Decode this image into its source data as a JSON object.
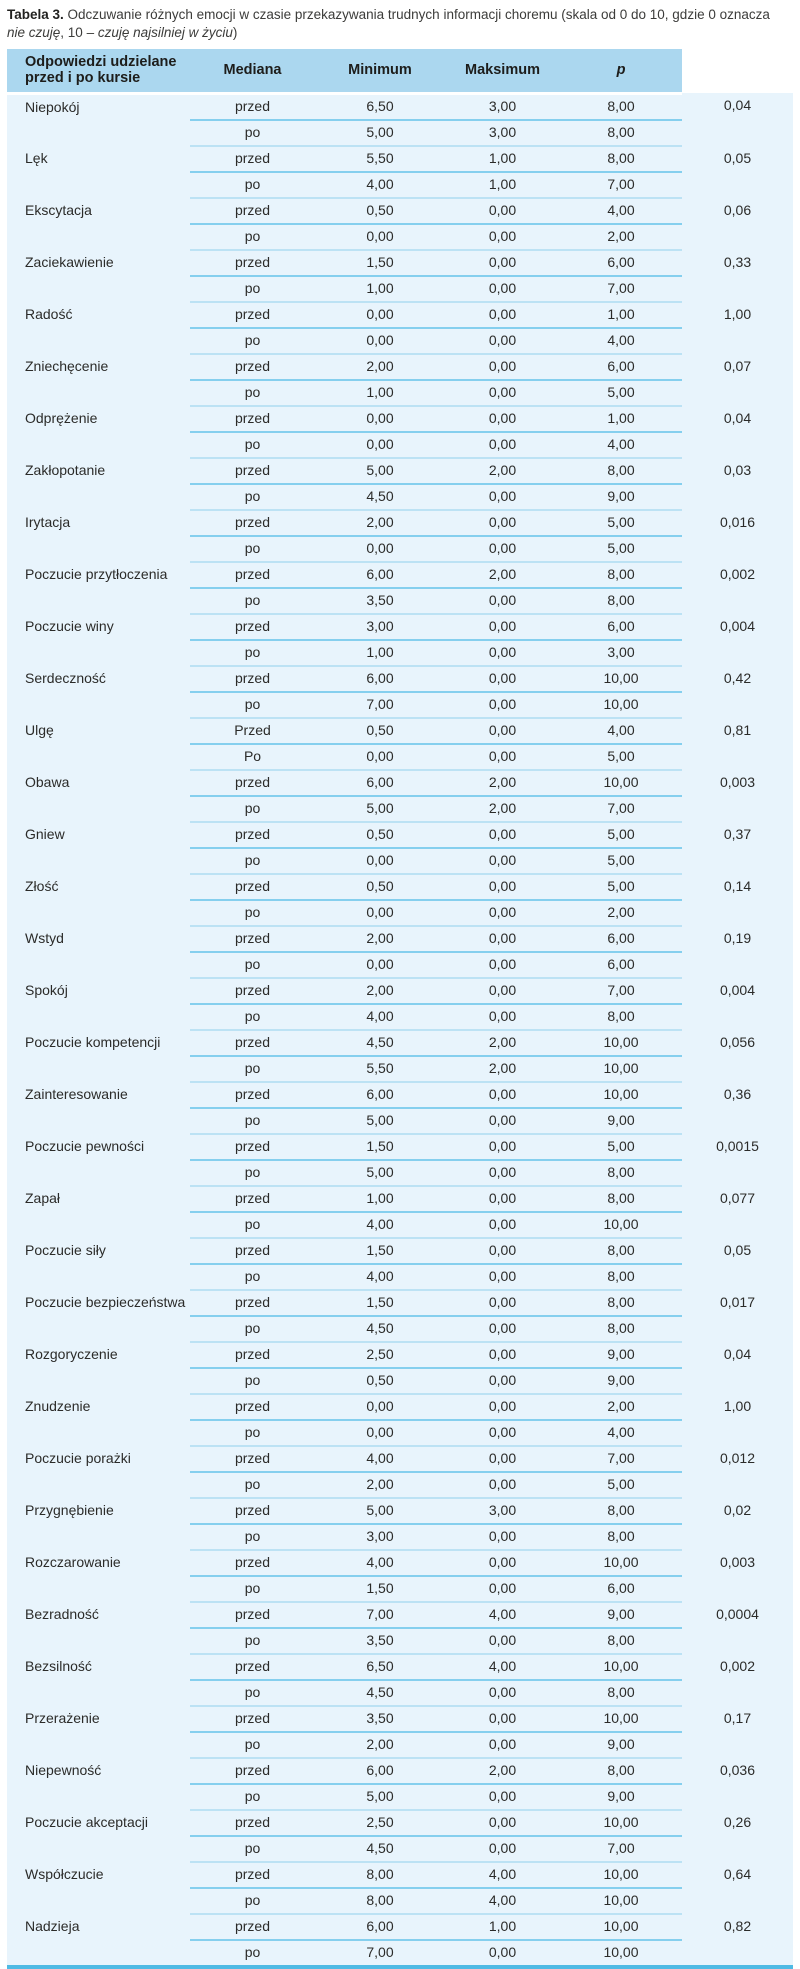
{
  "colors": {
    "header_bg": "#abd7ef",
    "row_bg": "#e8f4fc",
    "inner_rule": "#85cfee",
    "block_rule": "#bce2f4",
    "bottom_border": "#4fbae4"
  },
  "caption": {
    "bold_label": "Tabela 3.",
    "segments": [
      {
        "text": " Odczuwanie różnych emocji w czasie przekazywania trudnych informacji choremu (skala od 0 do 10, gdzie 0 oznacza ",
        "italic": false
      },
      {
        "text": "nie czuję",
        "italic": true
      },
      {
        "text": ", 10 – ",
        "italic": false
      },
      {
        "text": "czuję najsilniej w życiu",
        "italic": true
      },
      {
        "text": ")",
        "italic": false
      }
    ]
  },
  "table": {
    "headers": {
      "answers": "Odpowiedzi udzielane przed i po kursie",
      "median": "Mediana",
      "min": "Minimum",
      "max": "Maksimum",
      "p": "p"
    },
    "rows": [
      {
        "emotion": "Niepokój",
        "before_label": "przed",
        "after_label": "po",
        "before": {
          "median": "6,50",
          "min": "3,00",
          "max": "8,00"
        },
        "after": {
          "median": "5,00",
          "min": "3,00",
          "max": "8,00"
        },
        "p": "0,04"
      },
      {
        "emotion": "Lęk",
        "before_label": "przed",
        "after_label": "po",
        "before": {
          "median": "5,50",
          "min": "1,00",
          "max": "8,00"
        },
        "after": {
          "median": "4,00",
          "min": "1,00",
          "max": "7,00"
        },
        "p": "0,05"
      },
      {
        "emotion": "Ekscytacja",
        "before_label": "przed",
        "after_label": "po",
        "before": {
          "median": "0,50",
          "min": "0,00",
          "max": "4,00"
        },
        "after": {
          "median": "0,00",
          "min": "0,00",
          "max": "2,00"
        },
        "p": "0,06"
      },
      {
        "emotion": "Zaciekawienie",
        "before_label": "przed",
        "after_label": "po",
        "before": {
          "median": "1,50",
          "min": "0,00",
          "max": "6,00"
        },
        "after": {
          "median": "1,00",
          "min": "0,00",
          "max": "7,00"
        },
        "p": "0,33"
      },
      {
        "emotion": "Radość",
        "before_label": "przed",
        "after_label": "po",
        "before": {
          "median": "0,00",
          "min": "0,00",
          "max": "1,00"
        },
        "after": {
          "median": "0,00",
          "min": "0,00",
          "max": "4,00"
        },
        "p": "1,00"
      },
      {
        "emotion": "Zniechęcenie",
        "before_label": "przed",
        "after_label": "po",
        "before": {
          "median": "2,00",
          "min": "0,00",
          "max": "6,00"
        },
        "after": {
          "median": "1,00",
          "min": "0,00",
          "max": "5,00"
        },
        "p": "0,07"
      },
      {
        "emotion": "Odprężenie",
        "before_label": "przed",
        "after_label": "po",
        "before": {
          "median": "0,00",
          "min": "0,00",
          "max": "1,00"
        },
        "after": {
          "median": "0,00",
          "min": "0,00",
          "max": "4,00"
        },
        "p": "0,04"
      },
      {
        "emotion": "Zakłopotanie",
        "before_label": "przed",
        "after_label": "po",
        "before": {
          "median": "5,00",
          "min": "2,00",
          "max": "8,00"
        },
        "after": {
          "median": "4,50",
          "min": "0,00",
          "max": "9,00"
        },
        "p": "0,03"
      },
      {
        "emotion": "Irytacja",
        "before_label": "przed",
        "after_label": "po",
        "before": {
          "median": "2,00",
          "min": "0,00",
          "max": "5,00"
        },
        "after": {
          "median": "0,00",
          "min": "0,00",
          "max": "5,00"
        },
        "p": "0,016"
      },
      {
        "emotion": "Poczucie przytłoczenia",
        "before_label": "przed",
        "after_label": "po",
        "before": {
          "median": "6,00",
          "min": "2,00",
          "max": "8,00"
        },
        "after": {
          "median": "3,50",
          "min": "0,00",
          "max": "8,00"
        },
        "p": "0,002"
      },
      {
        "emotion": "Poczucie winy",
        "before_label": "przed",
        "after_label": "po",
        "before": {
          "median": "3,00",
          "min": "0,00",
          "max": "6,00"
        },
        "after": {
          "median": "1,00",
          "min": "0,00",
          "max": "3,00"
        },
        "p": "0,004"
      },
      {
        "emotion": "Serdeczność",
        "before_label": "przed",
        "after_label": "po",
        "before": {
          "median": "6,00",
          "min": "0,00",
          "max": "10,00"
        },
        "after": {
          "median": "7,00",
          "min": "0,00",
          "max": "10,00"
        },
        "p": "0,42"
      },
      {
        "emotion": "Ulgę",
        "before_label": "Przed",
        "after_label": "Po",
        "before": {
          "median": "0,50",
          "min": "0,00",
          "max": "4,00"
        },
        "after": {
          "median": "0,00",
          "min": "0,00",
          "max": "5,00"
        },
        "p": "0,81"
      },
      {
        "emotion": "Obawa",
        "before_label": "przed",
        "after_label": "po",
        "before": {
          "median": "6,00",
          "min": "2,00",
          "max": "10,00"
        },
        "after": {
          "median": "5,00",
          "min": "2,00",
          "max": "7,00"
        },
        "p": "0,003"
      },
      {
        "emotion": "Gniew",
        "before_label": "przed",
        "after_label": "po",
        "before": {
          "median": "0,50",
          "min": "0,00",
          "max": "5,00"
        },
        "after": {
          "median": "0,00",
          "min": "0,00",
          "max": "5,00"
        },
        "p": "0,37"
      },
      {
        "emotion": "Złość",
        "before_label": "przed",
        "after_label": "po",
        "before": {
          "median": "0,50",
          "min": "0,00",
          "max": "5,00"
        },
        "after": {
          "median": "0,00",
          "min": "0,00",
          "max": "2,00"
        },
        "p": "0,14"
      },
      {
        "emotion": "Wstyd",
        "before_label": "przed",
        "after_label": "po",
        "before": {
          "median": "2,00",
          "min": "0,00",
          "max": "6,00"
        },
        "after": {
          "median": "0,00",
          "min": "0,00",
          "max": "6,00"
        },
        "p": "0,19"
      },
      {
        "emotion": "Spokój",
        "before_label": "przed",
        "after_label": "po",
        "before": {
          "median": "2,00",
          "min": "0,00",
          "max": "7,00"
        },
        "after": {
          "median": "4,00",
          "min": "0,00",
          "max": "8,00"
        },
        "p": "0,004"
      },
      {
        "emotion": "Poczucie kompetencji",
        "before_label": "przed",
        "after_label": "po",
        "before": {
          "median": "4,50",
          "min": "2,00",
          "max": "10,00"
        },
        "after": {
          "median": "5,50",
          "min": "2,00",
          "max": "10,00"
        },
        "p": "0,056"
      },
      {
        "emotion": "Zainteresowanie",
        "before_label": "przed",
        "after_label": "po",
        "before": {
          "median": "6,00",
          "min": "0,00",
          "max": "10,00"
        },
        "after": {
          "median": "5,00",
          "min": "0,00",
          "max": "9,00"
        },
        "p": "0,36"
      },
      {
        "emotion": "Poczucie pewności",
        "before_label": "przed",
        "after_label": "po",
        "before": {
          "median": "1,50",
          "min": "0,00",
          "max": "5,00"
        },
        "after": {
          "median": "5,00",
          "min": "0,00",
          "max": "8,00"
        },
        "p": "0,0015"
      },
      {
        "emotion": "Zapał",
        "before_label": "przed",
        "after_label": "po",
        "before": {
          "median": "1,00",
          "min": "0,00",
          "max": "8,00"
        },
        "after": {
          "median": "4,00",
          "min": "0,00",
          "max": "10,00"
        },
        "p": "0,077"
      },
      {
        "emotion": "Poczucie siły",
        "before_label": "przed",
        "after_label": "po",
        "before": {
          "median": "1,50",
          "min": "0,00",
          "max": "8,00"
        },
        "after": {
          "median": "4,00",
          "min": "0,00",
          "max": "8,00"
        },
        "p": "0,05"
      },
      {
        "emotion": "Poczucie bezpieczeństwa",
        "before_label": "przed",
        "after_label": "po",
        "before": {
          "median": "1,50",
          "min": "0,00",
          "max": "8,00"
        },
        "after": {
          "median": "4,50",
          "min": "0,00",
          "max": "8,00"
        },
        "p": "0,017"
      },
      {
        "emotion": "Rozgoryczenie",
        "before_label": "przed",
        "after_label": "po",
        "before": {
          "median": "2,50",
          "min": "0,00",
          "max": "9,00"
        },
        "after": {
          "median": "0,50",
          "min": "0,00",
          "max": "9,00"
        },
        "p": "0,04"
      },
      {
        "emotion": "Znudzenie",
        "before_label": "przed",
        "after_label": "po",
        "before": {
          "median": "0,00",
          "min": "0,00",
          "max": "2,00"
        },
        "after": {
          "median": "0,00",
          "min": "0,00",
          "max": "4,00"
        },
        "p": "1,00"
      },
      {
        "emotion": "Poczucie porażki",
        "before_label": "przed",
        "after_label": "po",
        "before": {
          "median": "4,00",
          "min": "0,00",
          "max": "7,00"
        },
        "after": {
          "median": "2,00",
          "min": "0,00",
          "max": "5,00"
        },
        "p": "0,012"
      },
      {
        "emotion": "Przygnębienie",
        "before_label": "przed",
        "after_label": "po",
        "before": {
          "median": "5,00",
          "min": "3,00",
          "max": "8,00"
        },
        "after": {
          "median": "3,00",
          "min": "0,00",
          "max": "8,00"
        },
        "p": "0,02"
      },
      {
        "emotion": "Rozczarowanie",
        "before_label": "przed",
        "after_label": "po",
        "before": {
          "median": "4,00",
          "min": "0,00",
          "max": "10,00"
        },
        "after": {
          "median": "1,50",
          "min": "0,00",
          "max": "6,00"
        },
        "p": "0,003"
      },
      {
        "emotion": "Bezradność",
        "before_label": "przed",
        "after_label": "po",
        "before": {
          "median": "7,00",
          "min": "4,00",
          "max": "9,00"
        },
        "after": {
          "median": "3,50",
          "min": "0,00",
          "max": "8,00"
        },
        "p": "0,0004"
      },
      {
        "emotion": "Bezsilność",
        "before_label": "przed",
        "after_label": "po",
        "before": {
          "median": "6,50",
          "min": "4,00",
          "max": "10,00"
        },
        "after": {
          "median": "4,50",
          "min": "0,00",
          "max": "8,00"
        },
        "p": "0,002"
      },
      {
        "emotion": "Przerażenie",
        "before_label": "przed",
        "after_label": "po",
        "before": {
          "median": "3,50",
          "min": "0,00",
          "max": "10,00"
        },
        "after": {
          "median": "2,00",
          "min": "0,00",
          "max": "9,00"
        },
        "p": "0,17"
      },
      {
        "emotion": "Niepewność",
        "before_label": "przed",
        "after_label": "po",
        "before": {
          "median": "6,00",
          "min": "2,00",
          "max": "8,00"
        },
        "after": {
          "median": "5,00",
          "min": "0,00",
          "max": "9,00"
        },
        "p": "0,036"
      },
      {
        "emotion": "Poczucie akceptacji",
        "before_label": "przed",
        "after_label": "po",
        "before": {
          "median": "2,50",
          "min": "0,00",
          "max": "10,00"
        },
        "after": {
          "median": "4,50",
          "min": "0,00",
          "max": "7,00"
        },
        "p": "0,26"
      },
      {
        "emotion": "Współczucie",
        "before_label": "przed",
        "after_label": "po",
        "before": {
          "median": "8,00",
          "min": "4,00",
          "max": "10,00"
        },
        "after": {
          "median": "8,00",
          "min": "4,00",
          "max": "10,00"
        },
        "p": "0,64"
      },
      {
        "emotion": "Nadzieja",
        "before_label": "przed",
        "after_label": "po",
        "before": {
          "median": "6,00",
          "min": "1,00",
          "max": "10,00"
        },
        "after": {
          "median": "7,00",
          "min": "0,00",
          "max": "10,00"
        },
        "p": "0,82"
      }
    ]
  }
}
